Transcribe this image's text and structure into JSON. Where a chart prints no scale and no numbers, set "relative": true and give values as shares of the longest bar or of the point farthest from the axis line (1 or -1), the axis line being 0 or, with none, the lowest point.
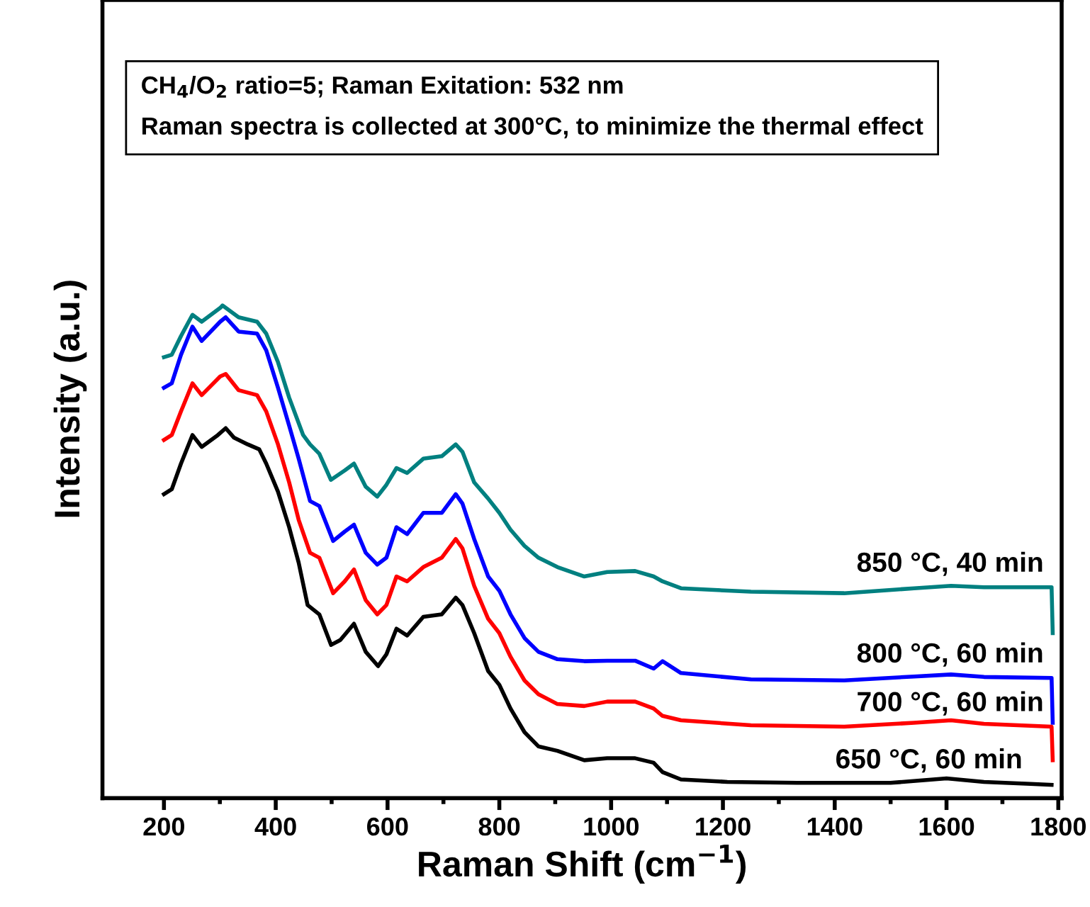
{
  "chart_data": {
    "type": "line",
    "relative": true,
    "xlabel": "Raman Shift (cm$^{−1}$)",
    "ylabel": "Intensity (a.u.)",
    "xlim": [
      90,
      1806
    ],
    "xticks": [
      200,
      400,
      600,
      800,
      1000,
      1200,
      1400,
      1600,
      1800
    ],
    "annotations": [
      "CH$_{4}$/O$_{2}$ ratio=5; Raman Exitation: 532 nm",
      "Raman spectra is collected at 300°C, to minimize the thermal effect"
    ],
    "legend": false,
    "grid": false,
    "marker": "none",
    "line_style": "solid",
    "series": [
      {
        "name": "850 °C, 40 min",
        "color": "#008080",
        "x": [
          200,
          214,
          230.5,
          251,
          267.5,
          300.6,
          304.7,
          333.6,
          366.6,
          383,
          404,
          424,
          449,
          461.4,
          478,
          498.6,
          523.3,
          540,
          561,
          581.6,
          598,
          616,
          635,
          664,
          697,
          722,
          734,
          755,
          780,
          800,
          820,
          845,
          870,
          904,
          952,
          993,
          1043,
          1076,
          1092,
          1125,
          1250,
          1417,
          1542,
          1608,
          1667,
          1788,
          1790
        ],
        "values": [
          0.895,
          0.9,
          0.938,
          0.981,
          0.967,
          0.995,
          1.0,
          0.976,
          0.967,
          0.943,
          0.885,
          0.813,
          0.737,
          0.718,
          0.699,
          0.646,
          0.665,
          0.679,
          0.632,
          0.612,
          0.636,
          0.67,
          0.66,
          0.689,
          0.694,
          0.718,
          0.703,
          0.641,
          0.608,
          0.579,
          0.545,
          0.512,
          0.488,
          0.469,
          0.45,
          0.459,
          0.461,
          0.45,
          0.44,
          0.426,
          0.419,
          0.416,
          0.426,
          0.431,
          0.428,
          0.428,
          0.335
        ]
      },
      {
        "name": "800 °C, 60 min",
        "color": "#0000ff",
        "x": [
          200,
          214,
          230.5,
          251,
          267.5,
          300.6,
          310.5,
          333.6,
          366.6,
          383,
          404,
          424,
          441,
          461.4,
          478,
          502.7,
          523.3,
          540,
          561,
          581.6,
          598,
          616,
          635,
          664,
          697,
          722,
          734,
          755,
          780,
          800,
          820,
          845,
          870,
          904,
          952,
          993,
          1043,
          1076,
          1092,
          1125,
          1250,
          1417,
          1542,
          1608,
          1667,
          1788,
          1790
        ],
        "values": [
          0.833,
          0.842,
          0.9,
          0.957,
          0.928,
          0.967,
          0.976,
          0.947,
          0.943,
          0.909,
          0.833,
          0.756,
          0.689,
          0.603,
          0.593,
          0.522,
          0.541,
          0.555,
          0.498,
          0.474,
          0.488,
          0.55,
          0.536,
          0.579,
          0.579,
          0.617,
          0.598,
          0.526,
          0.45,
          0.421,
          0.373,
          0.325,
          0.297,
          0.282,
          0.278,
          0.279,
          0.279,
          0.263,
          0.278,
          0.254,
          0.241,
          0.239,
          0.247,
          0.251,
          0.246,
          0.244,
          0.153
        ]
      },
      {
        "name": "700 °C, 60 min",
        "color": "#ff0000",
        "x": [
          200,
          214,
          230.5,
          251,
          267.5,
          300.6,
          310.5,
          333.6,
          366.6,
          383,
          404,
          424,
          441,
          461.4,
          478,
          502.7,
          523.3,
          540,
          561,
          581.6,
          598,
          616,
          635,
          664,
          697,
          722,
          734,
          755,
          780,
          800,
          820,
          845,
          870,
          904,
          952,
          993,
          1043,
          1076,
          1092,
          1125,
          1250,
          1417,
          1542,
          1608,
          1667,
          1788,
          1790
        ],
        "values": [
          0.727,
          0.737,
          0.785,
          0.842,
          0.818,
          0.856,
          0.861,
          0.828,
          0.818,
          0.785,
          0.718,
          0.641,
          0.565,
          0.498,
          0.488,
          0.416,
          0.44,
          0.464,
          0.402,
          0.373,
          0.392,
          0.45,
          0.44,
          0.469,
          0.488,
          0.526,
          0.507,
          0.431,
          0.364,
          0.335,
          0.287,
          0.239,
          0.211,
          0.191,
          0.187,
          0.196,
          0.196,
          0.182,
          0.167,
          0.158,
          0.148,
          0.145,
          0.153,
          0.158,
          0.151,
          0.145,
          0.077
        ]
      },
      {
        "name": "650 °C, 60 min",
        "color": "#000000",
        "x": [
          200,
          214,
          230.5,
          251,
          267.5,
          296.5,
          310.5,
          325,
          350,
          370.5,
          383,
          404,
          424,
          441,
          457,
          478,
          499,
          515.5,
          540,
          561,
          583,
          598,
          616,
          635,
          664,
          697,
          722,
          734,
          755,
          780,
          800,
          820,
          845,
          870,
          904,
          952,
          993,
          1043,
          1076,
          1092,
          1125,
          1208,
          1333,
          1500,
          1600,
          1667,
          1750,
          1788
        ],
        "values": [
          0.617,
          0.627,
          0.679,
          0.737,
          0.713,
          0.737,
          0.751,
          0.732,
          0.718,
          0.708,
          0.679,
          0.622,
          0.55,
          0.478,
          0.392,
          0.373,
          0.311,
          0.321,
          0.354,
          0.297,
          0.268,
          0.292,
          0.344,
          0.33,
          0.368,
          0.373,
          0.407,
          0.392,
          0.335,
          0.258,
          0.23,
          0.182,
          0.134,
          0.105,
          0.096,
          0.077,
          0.081,
          0.081,
          0.072,
          0.053,
          0.038,
          0.033,
          0.031,
          0.031,
          0.04,
          0.033,
          0.029,
          0.027
        ]
      }
    ]
  }
}
